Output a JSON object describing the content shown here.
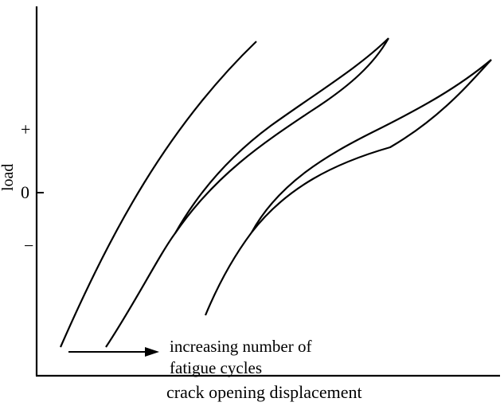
{
  "axes": {
    "x_label": "crack opening displacement",
    "y_label": "load",
    "y_ticks": [
      "+",
      "0",
      "−"
    ]
  },
  "annotation": {
    "line1": "increasing number of",
    "line2": "fatigue cycles"
  },
  "style": {
    "line_color": "#000000",
    "background": "#ffffff"
  }
}
